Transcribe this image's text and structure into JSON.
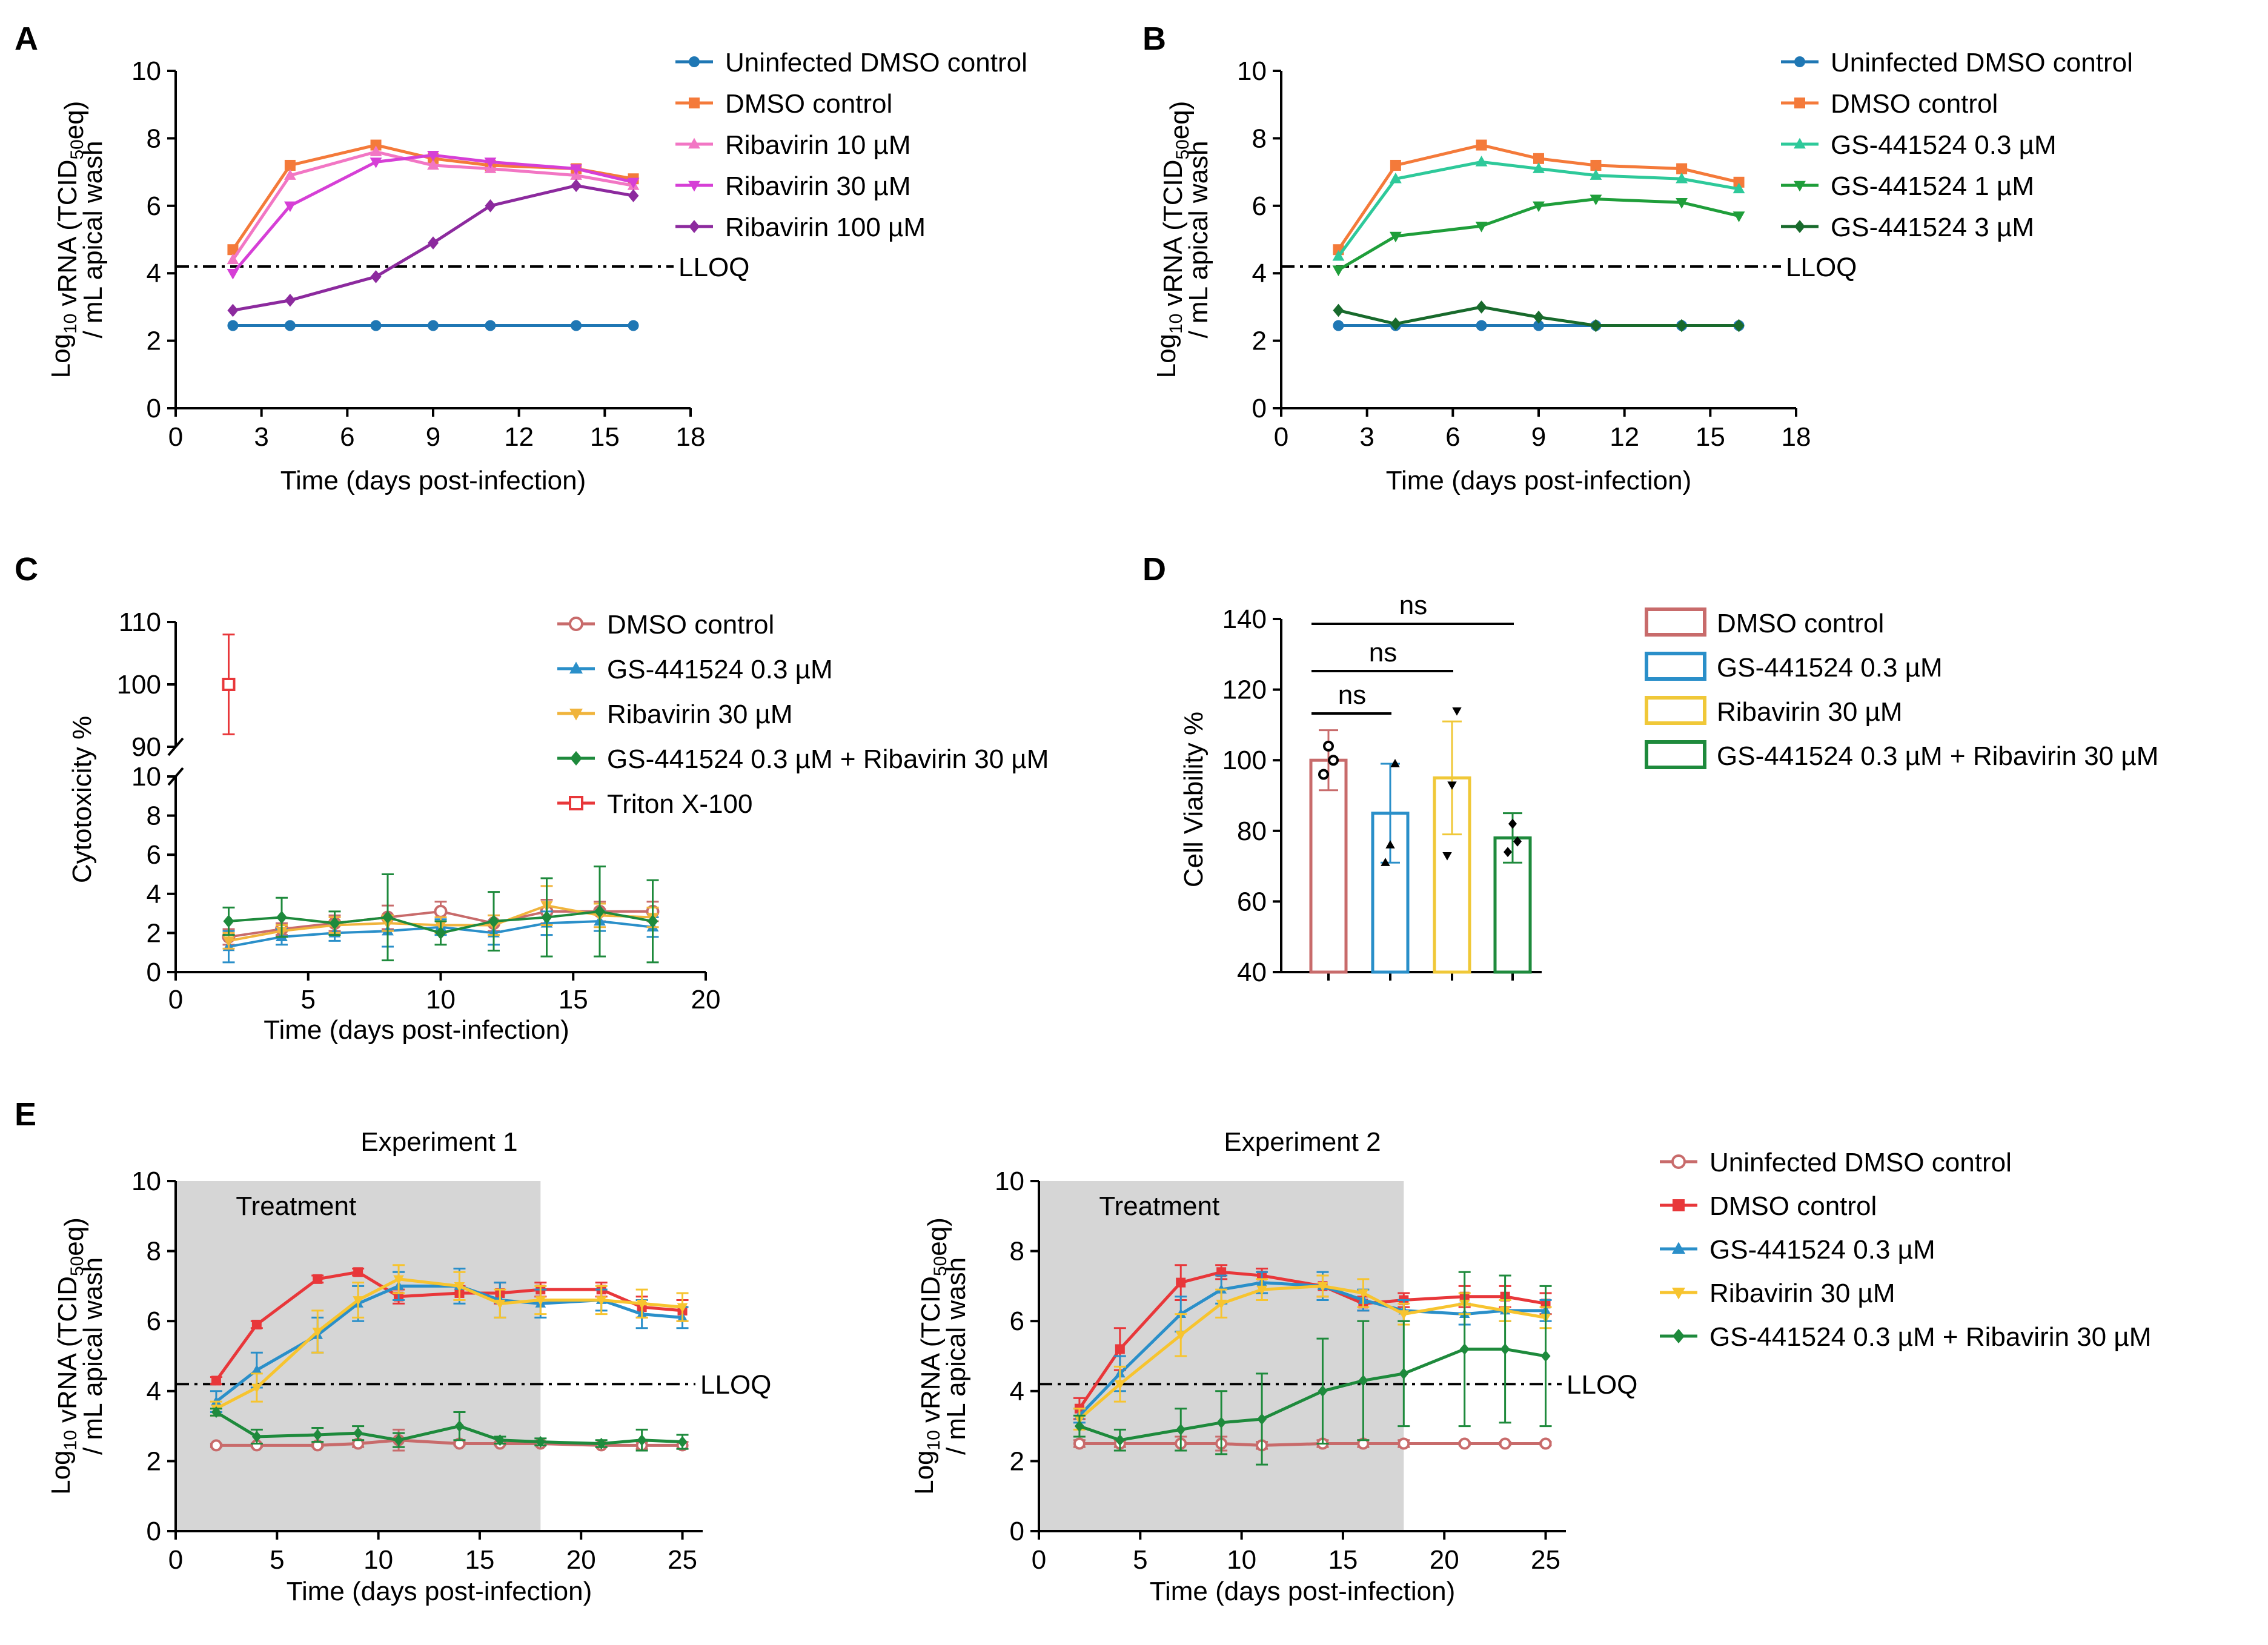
{
  "figure": {
    "panels": {
      "A": {
        "letter": "A",
        "ylabel_lines": [
          "Log10 vRNA (TCID50eq)",
          "/ mL apical wash"
        ],
        "lloq": "LLOQ"
      },
      "B": {
        "letter": "B",
        "ylabel_lines": [
          "Log10 vRNA (TCID50eq)",
          "/ mL apical wash"
        ],
        "lloq": "LLOQ"
      },
      "C": {
        "letter": "C"
      },
      "D": {
        "letter": "D",
        "ns": [
          "ns",
          "ns",
          "ns"
        ]
      },
      "E": {
        "letter": "E",
        "lloq": "LLOQ",
        "treatment": "Treatment",
        "ylabel_lines": [
          "Log10 vRNA (TCID50eq)",
          "/ mL apical wash"
        ]
      }
    }
  },
  "chart_data": [
    {
      "id": "A",
      "type": "line",
      "xlabel": "Time (days post-infection)",
      "ylabel": "Log10 vRNA (TCID50eq) / mL apical wash",
      "xlim": [
        0,
        18
      ],
      "ylim": [
        0,
        10
      ],
      "xticks": [
        0,
        3,
        6,
        9,
        12,
        15,
        18
      ],
      "yticks": [
        0,
        2,
        4,
        6,
        8,
        10
      ],
      "lloq": 4.2,
      "series": [
        {
          "name": "Uninfected DMSO control",
          "color": "#1f77b4",
          "marker": "circle",
          "x": [
            2,
            4,
            7,
            9,
            11,
            14,
            16
          ],
          "y": [
            2.45,
            2.45,
            2.45,
            2.45,
            2.45,
            2.45,
            2.45
          ]
        },
        {
          "name": "DMSO control",
          "color": "#f47a3a",
          "marker": "square",
          "x": [
            2,
            4,
            7,
            9,
            11,
            14,
            16
          ],
          "y": [
            4.7,
            7.2,
            7.8,
            7.4,
            7.2,
            7.1,
            6.8
          ]
        },
        {
          "name": "Ribavirin 10 µM",
          "color": "#f276c4",
          "marker": "triangle",
          "x": [
            2,
            4,
            7,
            9,
            11,
            14,
            16
          ],
          "y": [
            4.4,
            6.9,
            7.6,
            7.2,
            7.1,
            6.9,
            6.6
          ]
        },
        {
          "name": "Ribavirin 30 µM",
          "color": "#d63fd6",
          "marker": "triangle-down",
          "x": [
            2,
            4,
            7,
            9,
            11,
            14,
            16
          ],
          "y": [
            4.0,
            6.0,
            7.3,
            7.5,
            7.3,
            7.1,
            6.7
          ]
        },
        {
          "name": "Ribavirin 100 µM",
          "color": "#8c2a9e",
          "marker": "diamond",
          "x": [
            2,
            4,
            7,
            9,
            11,
            14,
            16
          ],
          "y": [
            2.9,
            3.2,
            3.9,
            4.9,
            6.0,
            6.6,
            6.3
          ]
        }
      ]
    },
    {
      "id": "B",
      "type": "line",
      "xlabel": "Time (days post-infection)",
      "ylabel": "Log10 vRNA (TCID50eq) / mL apical wash",
      "xlim": [
        0,
        18
      ],
      "ylim": [
        0,
        10
      ],
      "xticks": [
        0,
        3,
        6,
        9,
        12,
        15,
        18
      ],
      "yticks": [
        0,
        2,
        4,
        6,
        8,
        10
      ],
      "lloq": 4.2,
      "series": [
        {
          "name": "Uninfected DMSO control",
          "color": "#1f77b4",
          "marker": "circle",
          "x": [
            2,
            4,
            7,
            9,
            11,
            14,
            16
          ],
          "y": [
            2.45,
            2.45,
            2.45,
            2.45,
            2.45,
            2.45,
            2.45
          ]
        },
        {
          "name": "DMSO control",
          "color": "#f47a3a",
          "marker": "square",
          "x": [
            2,
            4,
            7,
            9,
            11,
            14,
            16
          ],
          "y": [
            4.7,
            7.2,
            7.8,
            7.4,
            7.2,
            7.1,
            6.7
          ]
        },
        {
          "name": "GS-441524 0.3 µM",
          "color": "#2ec99a",
          "marker": "triangle",
          "x": [
            2,
            4,
            7,
            9,
            11,
            14,
            16
          ],
          "y": [
            4.5,
            6.8,
            7.3,
            7.1,
            6.9,
            6.8,
            6.5
          ]
        },
        {
          "name": "GS-441524 1 µM",
          "color": "#1f9e3a",
          "marker": "triangle-down",
          "x": [
            2,
            4,
            7,
            9,
            11,
            14,
            16
          ],
          "y": [
            4.1,
            5.1,
            5.4,
            6.0,
            6.2,
            6.1,
            5.7
          ]
        },
        {
          "name": "GS-441524 3 µM",
          "color": "#186a2c",
          "marker": "diamond",
          "x": [
            2,
            4,
            7,
            9,
            11,
            14,
            16
          ],
          "y": [
            2.9,
            2.5,
            3.0,
            2.7,
            2.45,
            2.45,
            2.45
          ]
        }
      ]
    },
    {
      "id": "C",
      "type": "line",
      "xlabel": "Time (days post-infection)",
      "ylabel": "Cytotoxicity %",
      "xlim": [
        0,
        20
      ],
      "xticks": [
        0,
        5,
        10,
        15,
        20
      ],
      "ylim_lower": [
        0,
        10
      ],
      "yticks_lower": [
        0,
        2,
        4,
        6,
        8,
        10
      ],
      "ylim_upper": [
        90,
        110
      ],
      "yticks_upper": [
        90,
        100,
        110
      ],
      "series": [
        {
          "name": "DMSO control",
          "color": "#c86b6b",
          "marker": "circle-open",
          "x": [
            2,
            4,
            6,
            8,
            10,
            12,
            14,
            16,
            18
          ],
          "y": [
            1.8,
            2.2,
            2.5,
            2.8,
            3.1,
            2.5,
            3.1,
            3.1,
            3.1
          ],
          "err": [
            0.4,
            0.3,
            0.4,
            0.6,
            0.5,
            0.4,
            0.6,
            0.5,
            0.5
          ]
        },
        {
          "name": "GS-441524 0.3 µM",
          "color": "#2a8fc9",
          "marker": "triangle",
          "x": [
            2,
            4,
            6,
            8,
            10,
            12,
            14,
            16,
            18
          ],
          "y": [
            1.3,
            1.8,
            2.0,
            2.1,
            2.3,
            2.0,
            2.5,
            2.6,
            2.3
          ],
          "err": [
            0.8,
            0.4,
            0.4,
            0.8,
            0.4,
            0.6,
            0.6,
            0.5,
            0.5
          ]
        },
        {
          "name": "Ribavirin 30 µM",
          "color": "#f0b43c",
          "marker": "triangle-down",
          "x": [
            2,
            4,
            6,
            8,
            10,
            12,
            14,
            16,
            18
          ],
          "y": [
            1.6,
            2.1,
            2.4,
            2.5,
            2.4,
            2.4,
            3.4,
            2.9,
            2.8
          ],
          "err": [
            0.4,
            0.3,
            0.4,
            0.4,
            0.4,
            0.5,
            1.0,
            0.6,
            0.5
          ]
        },
        {
          "name": "GS-441524 0.3 µM + Ribavirin 30 µM",
          "color": "#1e8a3c",
          "marker": "diamond",
          "x": [
            2,
            4,
            6,
            8,
            10,
            12,
            14,
            16,
            18
          ],
          "y": [
            2.6,
            2.8,
            2.5,
            2.8,
            2.0,
            2.6,
            2.8,
            3.1,
            2.6
          ],
          "err": [
            0.7,
            1.0,
            0.6,
            2.2,
            0.6,
            1.5,
            2.0,
            2.3,
            2.1
          ]
        },
        {
          "name": "Triton X-100",
          "color": "#e8373a",
          "marker": "square-open",
          "x": [
            2
          ],
          "y": [
            100
          ],
          "err": [
            8
          ]
        }
      ]
    },
    {
      "id": "D",
      "type": "bar",
      "ylabel": "Cell Viability %",
      "ylim": [
        40,
        140
      ],
      "yticks": [
        40,
        60,
        80,
        100,
        120,
        140
      ],
      "categories": [
        "DMSO control",
        "GS-441524 0.3 µM",
        "Ribavirin 30 µM",
        "GS-441524 0.3 µM + Ribavirin 30 µM"
      ],
      "values": [
        100,
        85,
        95,
        78
      ],
      "err": [
        8.5,
        14,
        16,
        7
      ],
      "colors": [
        "#c86b6b",
        "#2a8fc9",
        "#f0c838",
        "#1e8a3c"
      ],
      "points": [
        [
          96,
          104,
          100
        ],
        [
          71,
          76,
          99
        ],
        [
          73,
          93,
          114
        ],
        [
          74,
          82,
          77
        ]
      ],
      "significance": [
        {
          "from": 0,
          "to": 1,
          "label": "ns"
        },
        {
          "from": 0,
          "to": 2,
          "label": "ns"
        },
        {
          "from": 0,
          "to": 3,
          "label": "ns"
        }
      ]
    },
    {
      "id": "E1",
      "type": "line",
      "title": "Experiment 1",
      "xlabel": "Time (days post-infection)",
      "ylabel": "Log10 vRNA (TCID50eq) / mL apical wash",
      "xlim": [
        0,
        26
      ],
      "xticks": [
        0,
        5,
        10,
        15,
        20,
        25
      ],
      "ylim": [
        0,
        10
      ],
      "yticks": [
        0,
        2,
        4,
        6,
        8,
        10
      ],
      "lloq": 4.2,
      "treatment_window": [
        0,
        18
      ],
      "series": [
        {
          "name": "Uninfected DMSO control",
          "color": "#c86b6b",
          "marker": "circle-open",
          "x": [
            2,
            4,
            7,
            9,
            11,
            14,
            16,
            18,
            21,
            23,
            25
          ],
          "y": [
            2.45,
            2.45,
            2.45,
            2.5,
            2.6,
            2.5,
            2.5,
            2.5,
            2.45,
            2.45,
            2.45
          ],
          "err": [
            0.05,
            0.05,
            0.05,
            0.1,
            0.3,
            0.05,
            0.05,
            0.05,
            0.05,
            0.1,
            0.1
          ]
        },
        {
          "name": "DMSO control",
          "color": "#e8373a",
          "marker": "square",
          "x": [
            2,
            4,
            7,
            9,
            11,
            14,
            16,
            18,
            21,
            23,
            25
          ],
          "y": [
            4.3,
            5.9,
            7.2,
            7.4,
            6.7,
            6.8,
            6.8,
            6.9,
            6.9,
            6.4,
            6.3
          ],
          "err": [
            0.1,
            0.1,
            0.1,
            0.1,
            0.2,
            0.2,
            0.3,
            0.2,
            0.2,
            0.3,
            0.3
          ]
        },
        {
          "name": "GS-441524 0.3 µM",
          "color": "#2a8fc9",
          "marker": "triangle",
          "x": [
            2,
            4,
            7,
            9,
            11,
            14,
            16,
            18,
            21,
            23,
            25
          ],
          "y": [
            3.7,
            4.6,
            5.6,
            6.5,
            7.0,
            7.0,
            6.6,
            6.5,
            6.6,
            6.2,
            6.1
          ],
          "err": [
            0.3,
            0.5,
            0.5,
            0.5,
            0.4,
            0.5,
            0.5,
            0.4,
            0.3,
            0.4,
            0.3
          ]
        },
        {
          "name": "Ribavirin 30 µM",
          "color": "#f7c42f",
          "marker": "triangle-down",
          "x": [
            2,
            4,
            7,
            9,
            11,
            14,
            16,
            18,
            21,
            23,
            25
          ],
          "y": [
            3.5,
            4.1,
            5.7,
            6.6,
            7.2,
            7.0,
            6.5,
            6.6,
            6.6,
            6.5,
            6.4
          ],
          "err": [
            0.2,
            0.4,
            0.6,
            0.5,
            0.4,
            0.4,
            0.4,
            0.4,
            0.4,
            0.4,
            0.4
          ]
        },
        {
          "name": "GS-441524 0.3 µM + Ribavirin 30 µM",
          "color": "#1e8a3c",
          "marker": "diamond",
          "x": [
            2,
            4,
            7,
            9,
            11,
            14,
            16,
            18,
            21,
            23,
            25
          ],
          "y": [
            3.4,
            2.7,
            2.75,
            2.8,
            2.6,
            3.0,
            2.6,
            2.55,
            2.5,
            2.6,
            2.55
          ],
          "err": [
            0.1,
            0.2,
            0.2,
            0.2,
            0.2,
            0.4,
            0.1,
            0.1,
            0.1,
            0.3,
            0.2
          ]
        }
      ]
    },
    {
      "id": "E2",
      "type": "line",
      "title": "Experiment 2",
      "xlabel": "Time (days post-infection)",
      "ylabel": "Log10 vRNA (TCID50eq) / mL apical wash",
      "xlim": [
        0,
        26
      ],
      "xticks": [
        0,
        5,
        10,
        15,
        20,
        25
      ],
      "ylim": [
        0,
        10
      ],
      "yticks": [
        0,
        2,
        4,
        6,
        8,
        10
      ],
      "lloq": 4.2,
      "treatment_window": [
        0,
        18
      ],
      "series": [
        {
          "name": "Uninfected DMSO control",
          "color": "#c86b6b",
          "marker": "circle-open",
          "x": [
            2,
            4,
            7,
            9,
            11,
            14,
            16,
            18,
            21,
            23,
            25
          ],
          "y": [
            2.5,
            2.5,
            2.5,
            2.5,
            2.45,
            2.5,
            2.5,
            2.5,
            2.5,
            2.5,
            2.5
          ],
          "err": [
            0.1,
            0.1,
            0.2,
            0.2,
            0.1,
            0.1,
            0.1,
            0.1,
            0.05,
            0.05,
            0.05
          ]
        },
        {
          "name": "DMSO control",
          "color": "#e8373a",
          "marker": "square",
          "x": [
            2,
            4,
            7,
            9,
            11,
            14,
            16,
            18,
            21,
            23,
            25
          ],
          "y": [
            3.5,
            5.2,
            7.1,
            7.4,
            7.3,
            7.0,
            6.5,
            6.6,
            6.7,
            6.7,
            6.5
          ],
          "err": [
            0.3,
            0.6,
            0.5,
            0.2,
            0.2,
            0.3,
            0.2,
            0.2,
            0.3,
            0.3,
            0.3
          ]
        },
        {
          "name": "GS-441524 0.3 µM",
          "color": "#2a8fc9",
          "marker": "triangle",
          "x": [
            2,
            4,
            7,
            9,
            11,
            14,
            16,
            18,
            21,
            23,
            25
          ],
          "y": [
            3.3,
            4.5,
            6.2,
            6.9,
            7.1,
            7.0,
            6.6,
            6.3,
            6.2,
            6.3,
            6.3
          ],
          "err": [
            0.2,
            0.5,
            0.5,
            0.4,
            0.3,
            0.4,
            0.3,
            0.3,
            0.3,
            0.3,
            0.3
          ]
        },
        {
          "name": "Ribavirin 30 µM",
          "color": "#f7c42f",
          "marker": "triangle-down",
          "x": [
            2,
            4,
            7,
            9,
            11,
            14,
            16,
            18,
            21,
            23,
            25
          ],
          "y": [
            3.2,
            4.2,
            5.6,
            6.5,
            6.9,
            7.0,
            6.8,
            6.2,
            6.5,
            6.3,
            6.1
          ],
          "err": [
            0.3,
            0.5,
            0.6,
            0.4,
            0.3,
            0.3,
            0.4,
            0.3,
            0.3,
            0.3,
            0.3
          ]
        },
        {
          "name": "GS-441524 0.3 µM + Ribavirin 30 µM",
          "color": "#1e8a3c",
          "marker": "diamond",
          "x": [
            2,
            4,
            7,
            9,
            11,
            14,
            16,
            18,
            21,
            23,
            25
          ],
          "y": [
            3.0,
            2.6,
            2.9,
            3.1,
            3.2,
            4.0,
            4.3,
            4.5,
            5.2,
            5.2,
            5.0
          ],
          "err": [
            0.3,
            0.3,
            0.6,
            0.9,
            1.3,
            1.5,
            1.7,
            1.5,
            2.2,
            2.1,
            2.0
          ]
        }
      ]
    }
  ]
}
